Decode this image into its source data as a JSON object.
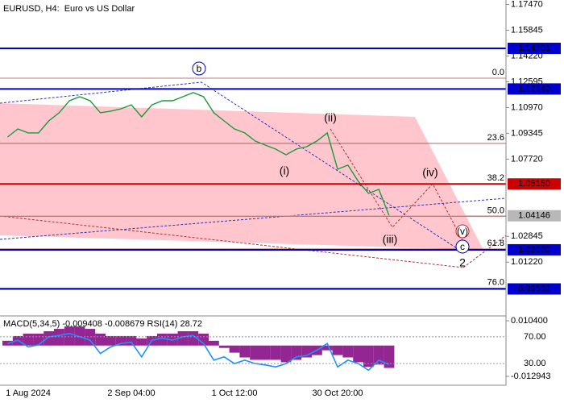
{
  "header": {
    "symbol": "EURUSD, H4:",
    "description": "Euro vs US Dollar"
  },
  "chart_data": [
    {
      "type": "line",
      "categories": [
        null,
        null,
        "1 Aug 2024",
        null,
        null,
        null,
        null,
        null,
        null,
        null,
        null,
        null,
        "2 Sep 04:00",
        null,
        null,
        null,
        null,
        null,
        null,
        null,
        null,
        null,
        "1 Oct 12:00",
        null,
        null,
        null,
        null,
        null,
        null,
        null,
        null,
        null,
        "30 Oct 20:00",
        null,
        null,
        null,
        null,
        null
      ],
      "values": [
        1.0911,
        1.0962,
        1.0937,
        1.0937,
        1.1013,
        1.1064,
        1.114,
        1.1165,
        1.114,
        1.1064,
        1.1074,
        1.1089,
        1.1114,
        1.1038,
        1.1114,
        1.114,
        1.114,
        1.1165,
        1.1191,
        1.1165,
        1.1064,
        1.1013,
        1.0962,
        1.0937,
        1.0886,
        1.086,
        1.0835,
        1.0799,
        1.0835,
        1.085,
        1.0886,
        1.0937,
        1.0708,
        1.0734,
        1.0632,
        1.0556,
        1.0581,
        1.0415
      ],
      "color": "#1a9a3a",
      "ylim": [
        0.9783,
        1.1775
      ],
      "yticks": [
        {
          "value": 1.1747,
          "label": "1.17470"
        },
        {
          "value": 1.15845,
          "label": "1.15845"
        },
        {
          "value": 1.1422,
          "label": "1.14220"
        },
        {
          "value": 1.12595,
          "label": "1.12595"
        },
        {
          "value": 1.1097,
          "label": "1.10970"
        },
        {
          "value": 1.09345,
          "label": "1.09345"
        },
        {
          "value": 1.0772,
          "label": "1.07720"
        },
        {
          "value": 1.02845,
          "label": "1.02845"
        },
        {
          "value": 1.0122,
          "label": "1.01220"
        }
      ],
      "levels": {
        "values": [
          1.14701,
          1.1214,
          1.0615,
          1.04146,
          1.02,
          0.99532
        ],
        "value_labels": [
          "1.14701",
          "1.12140",
          "1.06150",
          "1.04146",
          "1.02000",
          "0.99532"
        ],
        "colors": [
          "#0000cc",
          "#0000cc",
          "#cc0000",
          "#b8b8b8",
          "#0000cc",
          "#0000cc"
        ]
      },
      "fibonacci": {
        "high": 1.1282,
        "low": 0.954,
        "color": "#a05050",
        "levels": [
          {
            "value": 0,
            "label": "0.0"
          },
          23.6,
          38.2,
          {
            "value": 50,
            "label": "50.0"
          },
          61.8,
          {
            "value": 76,
            "label": "76.0"
          }
        ]
      },
      "wave_labels": [
        "b",
        "(i)",
        "(ii)",
        "(iii)",
        "(iv)",
        "(v)",
        "c",
        "2"
      ]
    },
    {
      "type": "macd",
      "title": "MACD(5,34,5) -0.009408 -0.008679 RSI(14) 28.72",
      "series": [
        {
          "color": "#800080",
          "values": [
            0.002,
            0.004,
            0.005,
            0.005,
            0.006,
            0.007,
            0.008,
            0.008,
            0.007,
            0.005,
            0.004,
            0.004,
            0.004,
            0.003,
            0.004,
            0.005,
            0.005,
            0.006,
            0.006,
            0.005,
            0.002,
            -0.001,
            -0.003,
            -0.005,
            -0.006,
            -0.006,
            -0.006,
            -0.007,
            -0.006,
            -0.005,
            -0.004,
            -0.002,
            -0.004,
            -0.005,
            -0.007,
            -0.009,
            -0.008,
            -0.0094
          ]
        },
        {
          "color": "#1e90ff",
          "axis": "y2",
          "values": [
            60,
            65,
            55,
            58,
            70,
            72,
            75,
            70,
            65,
            45,
            55,
            60,
            62,
            40,
            65,
            68,
            65,
            70,
            72,
            60,
            35,
            40,
            30,
            35,
            30,
            28,
            25,
            30,
            40,
            42,
            50,
            60,
            25,
            35,
            30,
            20,
            35,
            28.72
          ]
        }
      ],
      "ylim": [
        -0.01599,
        0.01209
      ],
      "yticks": [
        {
          "value": 0.0104,
          "label": "0.010400"
        },
        {
          "value": -0.012943,
          "label": "-0.012943"
        }
      ],
      "y2lim": [
        0,
        100
      ],
      "y2ticks": [
        {
          "value": 70,
          "label": "70.00"
        },
        {
          "value": 30,
          "label": "30.00"
        }
      ]
    }
  ]
}
